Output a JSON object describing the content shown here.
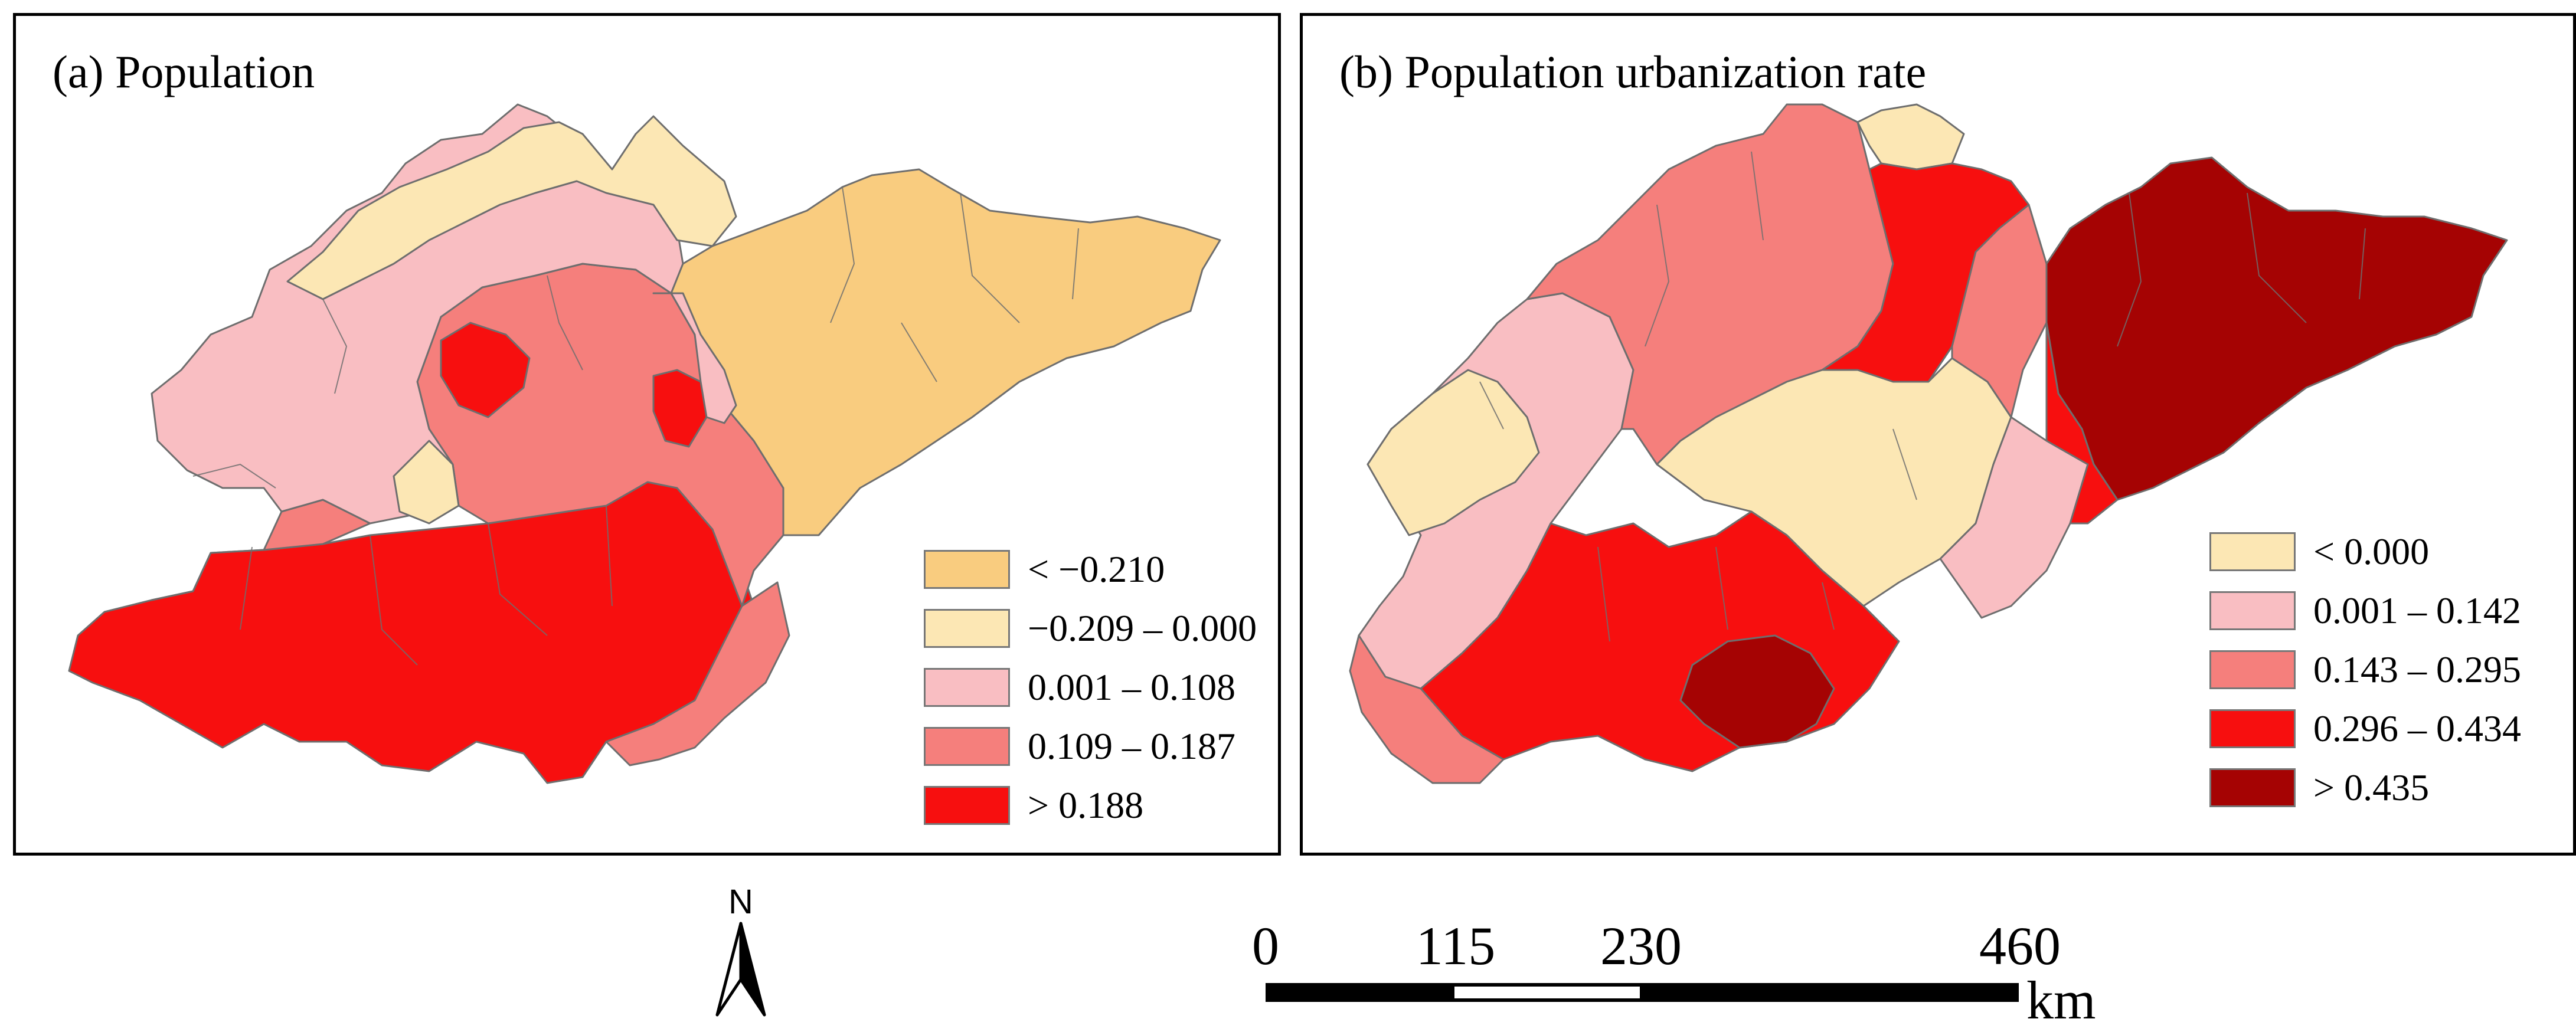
{
  "panels": [
    {
      "title": "(a) Population",
      "legend": [
        {
          "label": "< −0.210",
          "color": "#F9CC7F"
        },
        {
          "label": "−0.209 – 0.000",
          "color": "#FCE7B4"
        },
        {
          "label": "0.001 – 0.108",
          "color": "#F9BEC2"
        },
        {
          "label": "0.109 – 0.187",
          "color": "#F57F7C"
        },
        {
          "label": "> 0.188",
          "color": "#F70F0F"
        }
      ]
    },
    {
      "title": "(b) Population urbanization rate",
      "legend": [
        {
          "label": "< 0.000",
          "color": "#FCE7B4"
        },
        {
          "label": "0.001 – 0.142",
          "color": "#F9BEC2"
        },
        {
          "label": "0.143 – 0.295",
          "color": "#F57F7C"
        },
        {
          "label": "0.296 – 0.434",
          "color": "#F70F0F"
        },
        {
          "label": "> 0.435",
          "color": "#A50303"
        }
      ]
    }
  ],
  "north_arrow": {
    "label": "N"
  },
  "scale_bar": {
    "ticks": [
      "0",
      "115",
      "230",
      "460"
    ],
    "unit": "km"
  },
  "colors": {
    "border": "#6e6e6e",
    "frame": "#000000"
  }
}
